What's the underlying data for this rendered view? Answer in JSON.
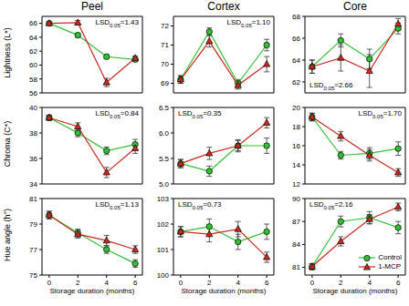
{
  "chart_data": [
    {
      "type": "line",
      "title": "Peel",
      "y_label": "Lightness (L*)",
      "x": [
        0,
        2,
        4,
        6
      ],
      "xlim": [
        -0.5,
        6.5
      ],
      "xticks": [
        0,
        2,
        4,
        6
      ],
      "ylim": [
        56,
        67
      ],
      "yticks": [
        56,
        58,
        60,
        62,
        64,
        66
      ],
      "series": [
        {
          "name": "Control",
          "color": "#33c033",
          "marker": "circle",
          "values": [
            66,
            64.3,
            61.2,
            60.8
          ],
          "errors": [
            0.2,
            0.3,
            0.3,
            0.3
          ]
        },
        {
          "name": "1-MCP",
          "color": "#cc2a1e",
          "marker": "triangle",
          "values": [
            66,
            66.1,
            57.5,
            61
          ],
          "errors": [
            0.2,
            0.3,
            0.6,
            0.3
          ]
        }
      ],
      "annotation": {
        "text": "LSD",
        "subscript": "0.05",
        "sign": "=",
        "value": 1.43
      }
    },
    {
      "type": "line",
      "title": "Cortex",
      "x": [
        0,
        2,
        4,
        6
      ],
      "xlim": [
        -0.5,
        6.5
      ],
      "xticks": [
        0,
        2,
        4,
        6
      ],
      "ylim": [
        68.5,
        72.5
      ],
      "yticks": [
        69,
        70,
        71,
        72
      ],
      "series": [
        {
          "name": "Control",
          "color": "#33c033",
          "marker": "circle",
          "values": [
            69.2,
            71.7,
            69,
            71
          ],
          "errors": [
            0.2,
            0.2,
            0.2,
            0.3
          ]
        },
        {
          "name": "1-MCP",
          "color": "#cc2a1e",
          "marker": "triangle",
          "values": [
            69.2,
            71.2,
            68.9,
            70
          ],
          "errors": [
            0.2,
            0.3,
            0.2,
            0.4
          ]
        }
      ],
      "annotation": {
        "text": "LSD",
        "subscript": "0.05",
        "sign": "=",
        "value": 1.1,
        "label": "1.10"
      }
    },
    {
      "type": "line",
      "title": "Core",
      "x": [
        0,
        2,
        4,
        6
      ],
      "xlim": [
        -0.5,
        6.5
      ],
      "xticks": [
        0,
        2,
        4,
        6
      ],
      "ylim": [
        61,
        68
      ],
      "yticks": [
        62,
        64,
        66,
        68
      ],
      "series": [
        {
          "name": "Control",
          "color": "#33c033",
          "marker": "circle",
          "values": [
            63.4,
            65.8,
            64.1,
            66.9
          ],
          "errors": [
            0.6,
            0.6,
            0.9,
            0.5
          ]
        },
        {
          "name": "1-MCP",
          "color": "#cc2a1e",
          "marker": "triangle",
          "values": [
            63.4,
            64.2,
            63,
            67.3
          ],
          "errors": [
            0.6,
            1.2,
            1.5,
            0.5
          ]
        }
      ],
      "annotation": {
        "text": "LSD",
        "subscript": "0.05",
        "sign": "=",
        "value": 2.66
      }
    },
    {
      "type": "line",
      "y_label": "Chroma (C*)",
      "x": [
        0,
        2,
        4,
        6
      ],
      "xlim": [
        -0.5,
        6.5
      ],
      "xticks": [
        0,
        2,
        4,
        6
      ],
      "ylim": [
        34,
        40
      ],
      "yticks": [
        34,
        36,
        38,
        40
      ],
      "series": [
        {
          "name": "Control",
          "color": "#33c033",
          "marker": "circle",
          "values": [
            39.2,
            38,
            36.6,
            37.1
          ],
          "errors": [
            0.2,
            0.3,
            0.3,
            0.4
          ]
        },
        {
          "name": "1-MCP",
          "color": "#cc2a1e",
          "marker": "triangle",
          "values": [
            39.2,
            38.5,
            34.9,
            36.8
          ],
          "errors": [
            0.2,
            0.3,
            0.4,
            0.4
          ]
        }
      ],
      "annotation": {
        "text": "LSD",
        "subscript": "0.05",
        "sign": "=",
        "value": 0.84
      }
    },
    {
      "type": "line",
      "x": [
        0,
        2,
        4,
        6
      ],
      "xlim": [
        -0.5,
        6.5
      ],
      "xticks": [
        0,
        2,
        4,
        6
      ],
      "ylim": [
        5,
        6.5
      ],
      "yticks": [
        {
          "value": 5,
          "label": "5.0"
        },
        5.5,
        {
          "value": 6,
          "label": "6.0"
        },
        6.5
      ],
      "series": [
        {
          "name": "Control",
          "color": "#33c033",
          "marker": "circle",
          "values": [
            5.4,
            5.25,
            5.75,
            5.75
          ],
          "errors": [
            0.08,
            0.1,
            0.12,
            0.15
          ]
        },
        {
          "name": "1-MCP",
          "color": "#cc2a1e",
          "marker": "triangle",
          "values": [
            5.4,
            5.6,
            5.75,
            6.2
          ],
          "errors": [
            0.08,
            0.12,
            0.1,
            0.1
          ]
        }
      ],
      "annotation": {
        "text": "LSD",
        "subscript": "0.05",
        "sign": "=",
        "value": 0.35
      }
    },
    {
      "type": "line",
      "x": [
        0,
        2,
        4,
        6
      ],
      "xlim": [
        -0.5,
        6.5
      ],
      "xticks": [
        0,
        2,
        4,
        6
      ],
      "ylim": [
        12,
        20
      ],
      "yticks": [
        12,
        14,
        16,
        18,
        20
      ],
      "series": [
        {
          "name": "Control",
          "color": "#33c033",
          "marker": "circle",
          "values": [
            19,
            15,
            15.2,
            15.7
          ],
          "errors": [
            0.4,
            0.4,
            0.6,
            0.7
          ]
        },
        {
          "name": "1-MCP",
          "color": "#cc2a1e",
          "marker": "triangle",
          "values": [
            19,
            17,
            15,
            13.2
          ],
          "errors": [
            0.4,
            0.5,
            0.6,
            0.4
          ]
        }
      ],
      "annotation": {
        "text": "LSD",
        "subscript": "0.05",
        "sign": "=",
        "value": 1.7,
        "label": "1.70"
      }
    },
    {
      "type": "line",
      "y_label": "Hue angle (h°)",
      "x_label": "Storage duration (months)",
      "x": [
        0,
        2,
        4,
        6
      ],
      "xlim": [
        -0.5,
        6.5
      ],
      "xticks": [
        0,
        2,
        4,
        6
      ],
      "ylim": [
        75,
        81
      ],
      "yticks": [
        75,
        77,
        79,
        81
      ],
      "series": [
        {
          "name": "Control",
          "color": "#33c033",
          "marker": "circle",
          "values": [
            79.7,
            78.3,
            77,
            75.9
          ],
          "errors": [
            0.3,
            0.3,
            0.3,
            0.3
          ]
        },
        {
          "name": "1-MCP",
          "color": "#cc2a1e",
          "marker": "triangle",
          "values": [
            79.7,
            78.2,
            77.7,
            77
          ],
          "errors": [
            0.3,
            0.3,
            0.4,
            0.3
          ]
        }
      ],
      "annotation": {
        "text": "LSD",
        "subscript": "0.05",
        "sign": "=",
        "value": 1.13
      }
    },
    {
      "type": "line",
      "x_label": "Storage duration (months)",
      "x": [
        0,
        2,
        4,
        6
      ],
      "xlim": [
        -0.5,
        6.5
      ],
      "xticks": [
        0,
        2,
        4,
        6
      ],
      "ylim": [
        100,
        103
      ],
      "yticks": [
        100,
        101,
        102,
        103
      ],
      "series": [
        {
          "name": "Control",
          "color": "#33c033",
          "marker": "circle",
          "values": [
            101.7,
            101.9,
            101.3,
            101.7
          ],
          "errors": [
            0.2,
            0.3,
            0.3,
            0.3
          ]
        },
        {
          "name": "1-MCP",
          "color": "#cc2a1e",
          "marker": "triangle",
          "values": [
            101.7,
            101.6,
            101.8,
            100.7
          ],
          "errors": [
            0.2,
            0.3,
            0.3,
            0.2
          ]
        }
      ],
      "annotation": {
        "text": "LSD",
        "subscript": "0.05",
        "sign": "=",
        "value": 0.73
      }
    },
    {
      "type": "line",
      "x_label": "Storage duration (months)",
      "legend": "lower right",
      "x": [
        0,
        2,
        4,
        6
      ],
      "xlim": [
        -0.5,
        6.5
      ],
      "xticks": [
        0,
        2,
        4,
        6
      ],
      "ylim": [
        80,
        90
      ],
      "yticks": [
        81,
        84,
        87,
        90
      ],
      "series": [
        {
          "name": "Control",
          "color": "#33c033",
          "marker": "circle",
          "values": [
            81.1,
            87,
            87.5,
            86.2
          ],
          "errors": [
            0.4,
            0.7,
            0.8,
            0.8
          ]
        },
        {
          "name": "1-MCP",
          "color": "#cc2a1e",
          "marker": "triangle",
          "values": [
            81.1,
            84.4,
            87.3,
            88.9
          ],
          "errors": [
            0.4,
            0.6,
            0.6,
            0.5
          ]
        }
      ],
      "annotation": {
        "text": "LSD",
        "subscript": "0.05",
        "sign": "=",
        "value": 2.16
      }
    }
  ]
}
